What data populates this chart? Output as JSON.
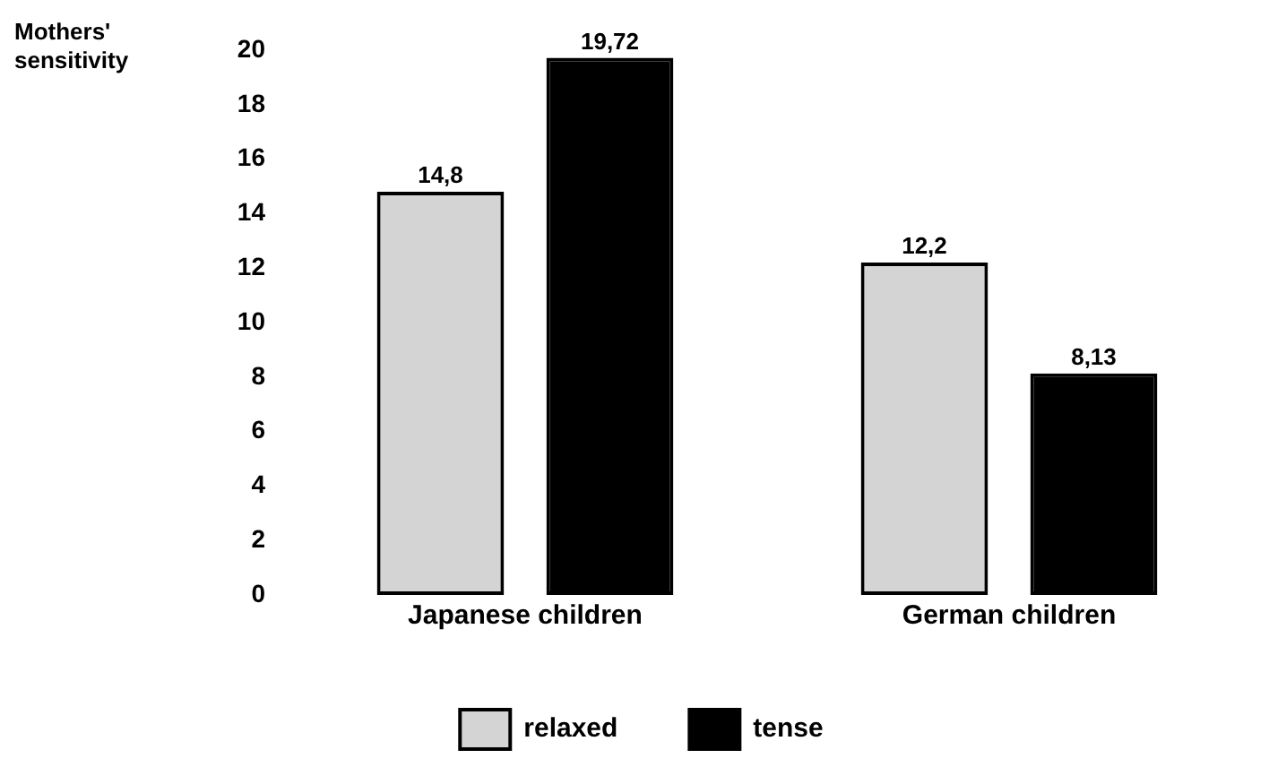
{
  "chart_data": {
    "type": "bar",
    "ylabel": "Mothers' sensitivity",
    "categories": [
      "Japanese children",
      "German children"
    ],
    "series": [
      {
        "name": "relaxed",
        "color": "#d4d4d4",
        "values": [
          14.8,
          12.2
        ],
        "value_labels": [
          "14,8",
          "12,2"
        ]
      },
      {
        "name": "tense",
        "color": "#000000",
        "values": [
          19.72,
          8.13
        ],
        "value_labels": [
          "19,72",
          "8,13"
        ]
      }
    ],
    "ylim": [
      0,
      20
    ],
    "yticks": [
      0,
      2,
      4,
      6,
      8,
      10,
      12,
      14,
      16,
      18,
      20
    ],
    "grid": false,
    "legend": "bottom"
  }
}
